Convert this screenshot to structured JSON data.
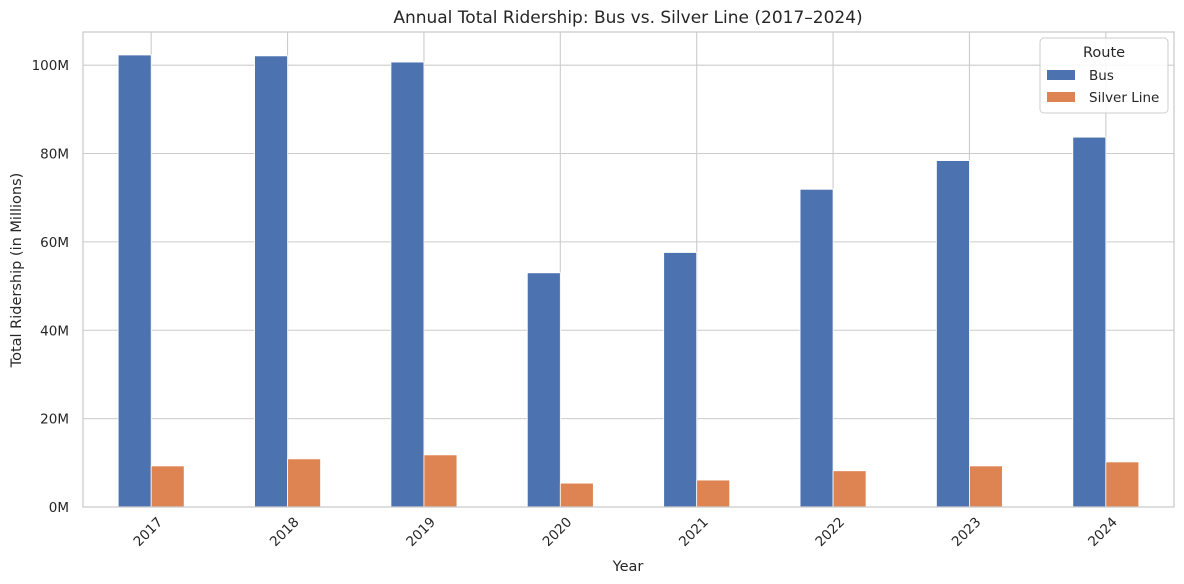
{
  "chart_data": {
    "type": "bar",
    "title": "Annual Total Ridership: Bus vs. Silver Line (2017–2024)",
    "xlabel": "Year",
    "ylabel": "Total Ridership (in Millions)",
    "categories": [
      "2017",
      "2018",
      "2019",
      "2020",
      "2021",
      "2022",
      "2023",
      "2024"
    ],
    "series": [
      {
        "name": "Bus",
        "color": "#4c72b0",
        "values": [
          102.3,
          102.1,
          100.7,
          53.0,
          57.6,
          71.9,
          78.4,
          83.7
        ]
      },
      {
        "name": "Silver Line",
        "color": "#dd8452",
        "values": [
          9.3,
          10.9,
          11.8,
          5.4,
          6.1,
          8.2,
          9.3,
          10.2
        ]
      }
    ],
    "ylim": [
      0,
      107.5
    ],
    "yticks": [
      0,
      20,
      40,
      60,
      80,
      100
    ],
    "ytick_labels": [
      "0M",
      "20M",
      "40M",
      "60M",
      "80M",
      "100M"
    ],
    "grid": true,
    "legend": {
      "title": "Route",
      "position": "top-right"
    }
  }
}
